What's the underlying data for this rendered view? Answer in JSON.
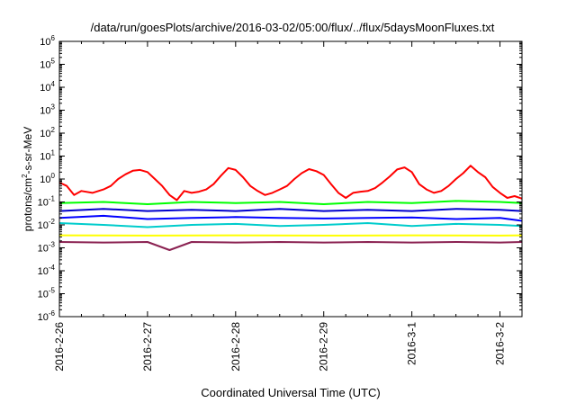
{
  "chart_data": {
    "type": "line",
    "title": "/data/run/goesPlots/archive/2016-03-02/05:00/flux/../flux/5daysMoonFluxes.txt",
    "xlabel": "Coordinated Universal Time (UTC)",
    "ylabel_parts": [
      "protons/cm",
      "2",
      "-s-sr-MeV"
    ],
    "yscale": "log",
    "ylim": [
      1e-06,
      1000000.0
    ],
    "xlim": [
      "2016-02-26",
      "2016-03-02 06:00"
    ],
    "x_ticks": [
      "2016-2-26",
      "2016-2-27",
      "2016-2-28",
      "2016-2-29",
      "2016-3-1",
      "2016-3-2"
    ],
    "y_ticks": [
      {
        "base": "10",
        "exp": "-6"
      },
      {
        "base": "10",
        "exp": "-5"
      },
      {
        "base": "10",
        "exp": "-4"
      },
      {
        "base": "10",
        "exp": "-3"
      },
      {
        "base": "10",
        "exp": "-2"
      },
      {
        "base": "10",
        "exp": "-1"
      },
      {
        "base": "10",
        "exp": "0"
      },
      {
        "base": "10",
        "exp": "1"
      },
      {
        "base": "10",
        "exp": "2"
      },
      {
        "base": "10",
        "exp": "3"
      },
      {
        "base": "10",
        "exp": "4"
      },
      {
        "base": "10",
        "exp": "5"
      },
      {
        "base": "10",
        "exp": "6"
      }
    ],
    "grid": false,
    "legend": "none",
    "series": [
      {
        "color": "#ff0000",
        "x": [
          "2016-02-26 00:00",
          "2016-02-26 02:00",
          "2016-02-26 04:00",
          "2016-02-26 06:00",
          "2016-02-26 09:00",
          "2016-02-26 12:00",
          "2016-02-26 14:00",
          "2016-02-26 16:00",
          "2016-02-26 18:00",
          "2016-02-26 20:00",
          "2016-02-26 22:00",
          "2016-02-27 00:00",
          "2016-02-27 02:00",
          "2016-02-27 04:00",
          "2016-02-27 06:00",
          "2016-02-27 08:00",
          "2016-02-27 10:00",
          "2016-02-27 12:00",
          "2016-02-27 14:00",
          "2016-02-27 16:00",
          "2016-02-27 18:00",
          "2016-02-27 20:00",
          "2016-02-27 22:00",
          "2016-02-28 00:00",
          "2016-02-28 02:00",
          "2016-02-28 04:00",
          "2016-02-28 06:00",
          "2016-02-28 08:00",
          "2016-02-28 10:00",
          "2016-02-28 12:00",
          "2016-02-28 14:00",
          "2016-02-28 16:00",
          "2016-02-28 18:00",
          "2016-02-28 20:00",
          "2016-02-28 22:00",
          "2016-02-29 00:00",
          "2016-02-29 02:00",
          "2016-02-29 04:00",
          "2016-02-29 06:00",
          "2016-02-29 08:00",
          "2016-02-29 10:00",
          "2016-02-29 12:00",
          "2016-02-29 14:00",
          "2016-02-29 16:00",
          "2016-02-29 18:00",
          "2016-02-29 20:00",
          "2016-02-29 22:00",
          "2016-03-01 00:00",
          "2016-03-01 02:00",
          "2016-03-01 04:00",
          "2016-03-01 06:00",
          "2016-03-01 08:00",
          "2016-03-01 10:00",
          "2016-03-01 12:00",
          "2016-03-01 14:00",
          "2016-03-01 16:00",
          "2016-03-01 18:00",
          "2016-03-01 20:00",
          "2016-03-01 22:00",
          "2016-03-02 00:00",
          "2016-03-02 02:00",
          "2016-03-02 04:00",
          "2016-03-02 06:00"
        ],
        "y": [
          0.7,
          0.5,
          0.2,
          0.3,
          0.25,
          0.35,
          0.5,
          1.0,
          1.6,
          2.3,
          2.5,
          2.0,
          1.0,
          0.5,
          0.2,
          0.12,
          0.3,
          0.25,
          0.28,
          0.35,
          0.6,
          1.4,
          3.0,
          2.5,
          1.2,
          0.5,
          0.3,
          0.2,
          0.25,
          0.35,
          0.5,
          1.0,
          1.8,
          2.7,
          2.2,
          1.5,
          0.6,
          0.25,
          0.15,
          0.25,
          0.28,
          0.3,
          0.4,
          0.7,
          1.3,
          2.6,
          3.2,
          2.0,
          0.6,
          0.35,
          0.25,
          0.3,
          0.5,
          1.0,
          1.8,
          3.8,
          2.0,
          1.2,
          0.45,
          0.25,
          0.15,
          0.18,
          0.14
        ]
      },
      {
        "color": "#00ff00",
        "x": [
          "2016-02-26 00:00",
          "2016-02-26 12:00",
          "2016-02-27 00:00",
          "2016-02-27 12:00",
          "2016-02-28 00:00",
          "2016-02-28 12:00",
          "2016-02-29 00:00",
          "2016-02-29 12:00",
          "2016-03-01 00:00",
          "2016-03-01 12:00",
          "2016-03-02 00:00",
          "2016-03-02 06:00"
        ],
        "y": [
          0.09,
          0.1,
          0.08,
          0.1,
          0.09,
          0.1,
          0.08,
          0.1,
          0.09,
          0.11,
          0.1,
          0.09
        ]
      },
      {
        "color": "#00cccc",
        "x": [
          "2016-02-26 00:00",
          "2016-02-26 12:00",
          "2016-02-27 00:00",
          "2016-02-27 12:00",
          "2016-02-28 00:00",
          "2016-02-28 12:00",
          "2016-02-29 00:00",
          "2016-02-29 12:00",
          "2016-03-01 00:00",
          "2016-03-01 12:00",
          "2016-03-02 00:00",
          "2016-03-02 06:00"
        ],
        "y": [
          0.012,
          0.01,
          0.008,
          0.01,
          0.011,
          0.009,
          0.01,
          0.012,
          0.009,
          0.011,
          0.01,
          0.009
        ]
      },
      {
        "color": "#0000ff",
        "x": [
          "2016-02-26 00:00",
          "2016-02-26 12:00",
          "2016-02-27 00:00",
          "2016-02-27 12:00",
          "2016-02-28 00:00",
          "2016-02-28 12:00",
          "2016-02-29 00:00",
          "2016-02-29 12:00",
          "2016-03-01 00:00",
          "2016-03-01 12:00",
          "2016-03-02 00:00",
          "2016-03-02 06:00"
        ],
        "y": [
          0.02,
          0.025,
          0.018,
          0.02,
          0.022,
          0.02,
          0.019,
          0.02,
          0.021,
          0.018,
          0.02,
          0.015
        ]
      },
      {
        "color": "#0000cc",
        "x": [
          "2016-02-26 00:00",
          "2016-02-26 12:00",
          "2016-02-27 00:00",
          "2016-02-27 12:00",
          "2016-02-28 00:00",
          "2016-02-28 12:00",
          "2016-02-29 00:00",
          "2016-02-29 12:00",
          "2016-03-01 00:00",
          "2016-03-01 12:00",
          "2016-03-02 00:00",
          "2016-03-02 06:00"
        ],
        "y": [
          0.04,
          0.05,
          0.04,
          0.045,
          0.04,
          0.05,
          0.04,
          0.045,
          0.04,
          0.05,
          0.045,
          0.04
        ]
      },
      {
        "color": "#ffff00",
        "x": [
          "2016-02-26 00:00",
          "2016-02-27 00:00",
          "2016-02-28 00:00",
          "2016-02-29 00:00",
          "2016-03-01 00:00",
          "2016-03-02 00:00",
          "2016-03-02 06:00"
        ],
        "y": [
          0.0035,
          0.0034,
          0.0035,
          0.0034,
          0.0035,
          0.0034,
          0.0035
        ]
      },
      {
        "color": "#8b2252",
        "x": [
          "2016-02-26 00:00",
          "2016-02-26 12:00",
          "2016-02-27 00:00",
          "2016-02-27 06:00",
          "2016-02-27 12:00",
          "2016-02-28 00:00",
          "2016-02-28 12:00",
          "2016-02-29 00:00",
          "2016-02-29 12:00",
          "2016-03-01 00:00",
          "2016-03-01 12:00",
          "2016-03-02 00:00",
          "2016-03-02 06:00"
        ],
        "y": [
          0.0018,
          0.0017,
          0.0018,
          0.0008,
          0.0018,
          0.0017,
          0.0018,
          0.0017,
          0.0018,
          0.0017,
          0.0018,
          0.0017,
          0.0018
        ]
      }
    ]
  }
}
